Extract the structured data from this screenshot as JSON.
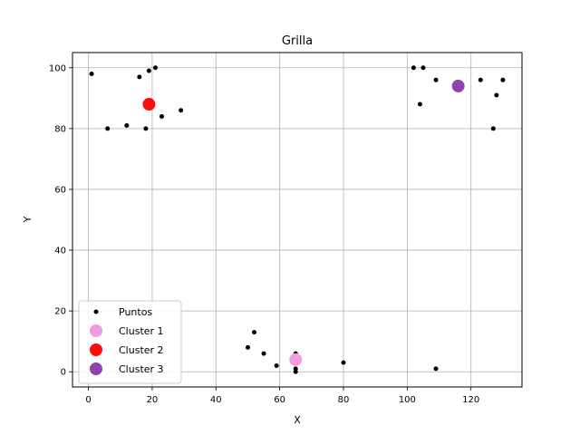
{
  "chart_data": {
    "type": "scatter",
    "title": "Grilla",
    "xlabel": "X",
    "ylabel": "Y",
    "xlim": [
      -5,
      136
    ],
    "ylim": [
      -5,
      105
    ],
    "xticks": [
      0,
      20,
      40,
      60,
      80,
      100,
      120
    ],
    "yticks": [
      0,
      20,
      40,
      60,
      80,
      100
    ],
    "grid": true,
    "legend_position": "lower-left",
    "series": [
      {
        "name": "Puntos",
        "color": "#000000",
        "marker": "small-dot",
        "points": [
          [
            1,
            98
          ],
          [
            6,
            80
          ],
          [
            12,
            81
          ],
          [
            16,
            97
          ],
          [
            18,
            80
          ],
          [
            19,
            99
          ],
          [
            21,
            100
          ],
          [
            23,
            84
          ],
          [
            29,
            86
          ],
          [
            102,
            100
          ],
          [
            105,
            100
          ],
          [
            104,
            88
          ],
          [
            109,
            96
          ],
          [
            123,
            96
          ],
          [
            127,
            80
          ],
          [
            128,
            91
          ],
          [
            130,
            96
          ],
          [
            50,
            8
          ],
          [
            52,
            13
          ],
          [
            55,
            6
          ],
          [
            59,
            2
          ],
          [
            65,
            6
          ],
          [
            65,
            1
          ],
          [
            65,
            0
          ],
          [
            80,
            3
          ],
          [
            109,
            1
          ]
        ]
      },
      {
        "name": "Cluster 1",
        "color": "#f29be0",
        "marker": "large-dot",
        "points": [
          [
            65,
            4
          ]
        ]
      },
      {
        "name": "Cluster 2",
        "color": "#ff0d0d",
        "marker": "large-dot",
        "points": [
          [
            19,
            88
          ]
        ]
      },
      {
        "name": "Cluster 3",
        "color": "#8e44ad",
        "marker": "large-dot",
        "points": [
          [
            116,
            94
          ]
        ]
      }
    ]
  }
}
